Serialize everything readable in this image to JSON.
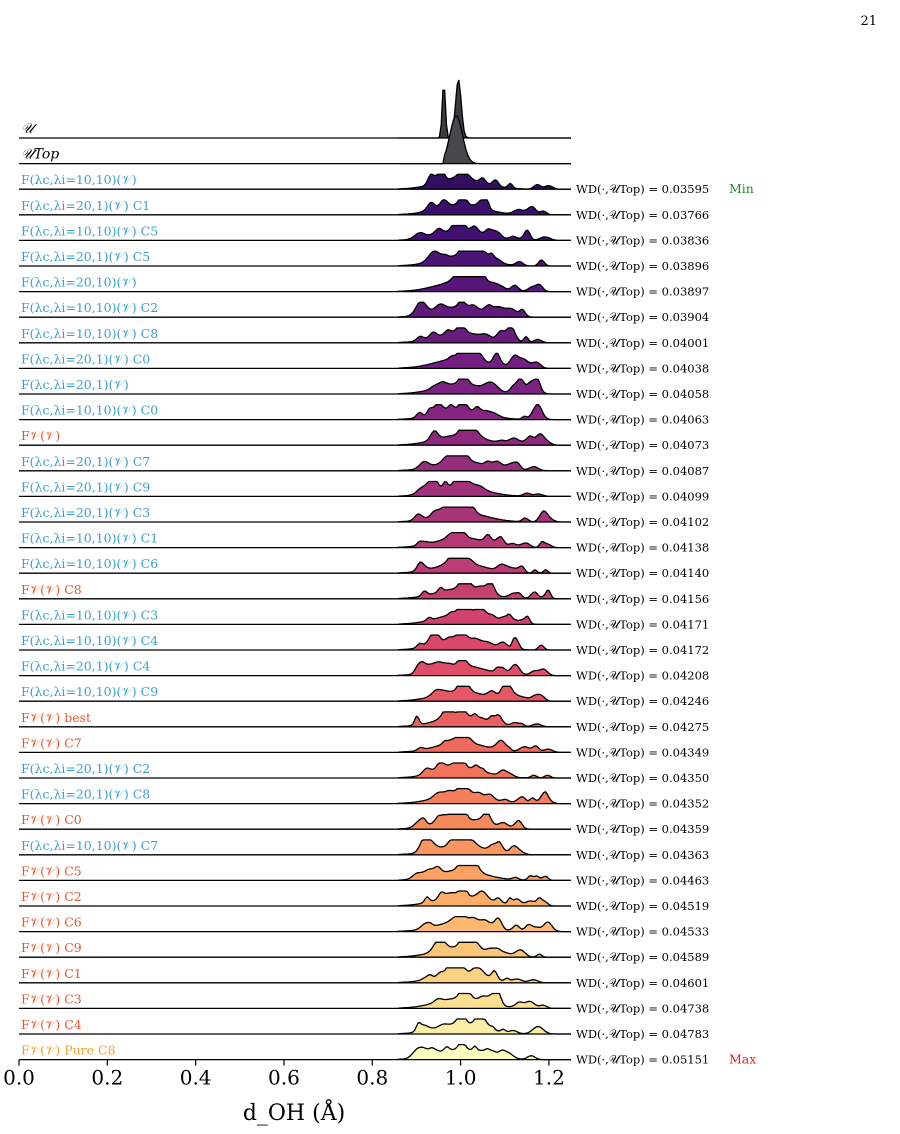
{
  "page": {
    "number": "21"
  },
  "chart_data": {
    "type": "area",
    "subtype": "ridgeline",
    "xlabel": "d_OH (Å)",
    "xlim": [
      0.0,
      1.25
    ],
    "x_ticks": [
      "0.0",
      "0.2",
      "0.4",
      "0.6",
      "0.8",
      "1.0",
      "1.2"
    ],
    "x_tick_values": [
      0.0,
      0.2,
      0.4,
      0.6,
      0.8,
      1.0,
      1.2
    ],
    "wd_prefix": "WD(·,𝒰Top) = ",
    "min_tag": "Min",
    "max_tag": "Max",
    "colors": {
      "min": "#2a8a2a",
      "max": "#e02020",
      "pure": "#f0a030",
      "sub_label": "#3aa0d0",
      "main_label": "#e05a30"
    },
    "rows": [
      {
        "label": "𝒰",
        "kind": "ref_U",
        "wd": null
      },
      {
        "label": "𝒰Top",
        "kind": "ref_top",
        "wd": null
      },
      {
        "label": "F(λc,λi=10,10)(𝒱)",
        "kind": "sub",
        "wd": "0.03595"
      },
      {
        "label": "F(λc,λi=20,1)(𝒱) C1",
        "kind": "sub",
        "wd": "0.03766"
      },
      {
        "label": "F(λc,λi=10,10)(𝒱) C5",
        "kind": "sub",
        "wd": "0.03836"
      },
      {
        "label": "F(λc,λi=20,1)(𝒱) C5",
        "kind": "sub",
        "wd": "0.03896"
      },
      {
        "label": "F(λc,λi=20,10)(𝒱)",
        "kind": "sub",
        "wd": "0.03897"
      },
      {
        "label": "F(λc,λi=10,10)(𝒱) C2",
        "kind": "sub",
        "wd": "0.03904"
      },
      {
        "label": "F(λc,λi=10,10)(𝒱) C8",
        "kind": "sub",
        "wd": "0.04001"
      },
      {
        "label": "F(λc,λi=20,1)(𝒱) C0",
        "kind": "sub",
        "wd": "0.04038"
      },
      {
        "label": "F(λc,λi=20,1)(𝒱)",
        "kind": "sub",
        "wd": "0.04058"
      },
      {
        "label": "F(λc,λi=10,10)(𝒱) C0",
        "kind": "sub",
        "wd": "0.04063"
      },
      {
        "label": "F𝒱(𝒱)",
        "kind": "main",
        "wd": "0.04073"
      },
      {
        "label": "F(λc,λi=20,1)(𝒱) C7",
        "kind": "sub",
        "wd": "0.04087"
      },
      {
        "label": "F(λc,λi=20,1)(𝒱) C9",
        "kind": "sub",
        "wd": "0.04099"
      },
      {
        "label": "F(λc,λi=20,1)(𝒱) C3",
        "kind": "sub",
        "wd": "0.04102"
      },
      {
        "label": "F(λc,λi=10,10)(𝒱) C1",
        "kind": "sub",
        "wd": "0.04138"
      },
      {
        "label": "F(λc,λi=10,10)(𝒱) C6",
        "kind": "sub",
        "wd": "0.04140"
      },
      {
        "label": "F𝒱(𝒱) C8",
        "kind": "main",
        "wd": "0.04156"
      },
      {
        "label": "F(λc,λi=10,10)(𝒱) C3",
        "kind": "sub",
        "wd": "0.04171"
      },
      {
        "label": "F(λc,λi=10,10)(𝒱) C4",
        "kind": "sub",
        "wd": "0.04172"
      },
      {
        "label": "F(λc,λi=20,1)(𝒱) C4",
        "kind": "sub",
        "wd": "0.04208"
      },
      {
        "label": "F(λc,λi=10,10)(𝒱) C9",
        "kind": "sub",
        "wd": "0.04246"
      },
      {
        "label": "F𝒱(𝒱) best",
        "kind": "main",
        "wd": "0.04275"
      },
      {
        "label": "F𝒱(𝒱) C7",
        "kind": "main",
        "wd": "0.04349"
      },
      {
        "label": "F(λc,λi=20,1)(𝒱) C2",
        "kind": "sub",
        "wd": "0.04350"
      },
      {
        "label": "F(λc,λi=20,1)(𝒱) C8",
        "kind": "sub",
        "wd": "0.04352"
      },
      {
        "label": "F𝒱(𝒱) C0",
        "kind": "main",
        "wd": "0.04359"
      },
      {
        "label": "F(λc,λi=10,10)(𝒱) C7",
        "kind": "sub",
        "wd": "0.04363"
      },
      {
        "label": "F𝒱(𝒱) C5",
        "kind": "main",
        "wd": "0.04463"
      },
      {
        "label": "F𝒱(𝒱) C2",
        "kind": "main",
        "wd": "0.04519"
      },
      {
        "label": "F𝒱(𝒱) C6",
        "kind": "main",
        "wd": "0.04533"
      },
      {
        "label": "F𝒱(𝒱) C9",
        "kind": "main",
        "wd": "0.04589"
      },
      {
        "label": "F𝒱(𝒱) C1",
        "kind": "main",
        "wd": "0.04601"
      },
      {
        "label": "F𝒱(𝒱) C3",
        "kind": "main",
        "wd": "0.04738"
      },
      {
        "label": "F𝒱(𝒱) C4",
        "kind": "main",
        "wd": "0.04783"
      },
      {
        "label": "F𝒱(𝒱) Pure C8",
        "kind": "pure",
        "wd": "0.05151"
      }
    ]
  }
}
